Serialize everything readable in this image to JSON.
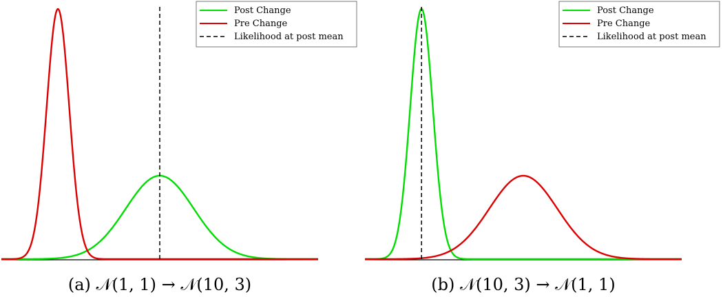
{
  "chart_data": [
    {
      "type": "line",
      "panel": "a",
      "caption_prefix": "(a) ",
      "caption_math": "𝒩(1, 1) → 𝒩(10, 3)",
      "xlim": [
        -4,
        24
      ],
      "ylim": [
        0,
        0.4
      ],
      "grid": false,
      "legend_position": "top-right",
      "series": [
        {
          "name": "Post Change",
          "color": "#00dd00",
          "mean": 10,
          "sd": 3
        },
        {
          "name": "Pre Change",
          "color": "#dd0000",
          "mean": 1,
          "sd": 1
        }
      ],
      "vline": {
        "name": "Likelihood at post mean",
        "x": 10,
        "color": "#000000",
        "dashed": true
      }
    },
    {
      "type": "line",
      "panel": "b",
      "caption_prefix": "(b) ",
      "caption_math": "𝒩(10, 3) → 𝒩(1, 1)",
      "xlim": [
        -4,
        24
      ],
      "ylim": [
        0,
        0.4
      ],
      "grid": false,
      "legend_position": "top-right",
      "series": [
        {
          "name": "Post Change",
          "color": "#00dd00",
          "mean": 1,
          "sd": 1
        },
        {
          "name": "Pre Change",
          "color": "#dd0000",
          "mean": 10,
          "sd": 3
        }
      ],
      "vline": {
        "name": "Likelihood at post mean",
        "x": 1,
        "color": "#000000",
        "dashed": true
      }
    }
  ]
}
